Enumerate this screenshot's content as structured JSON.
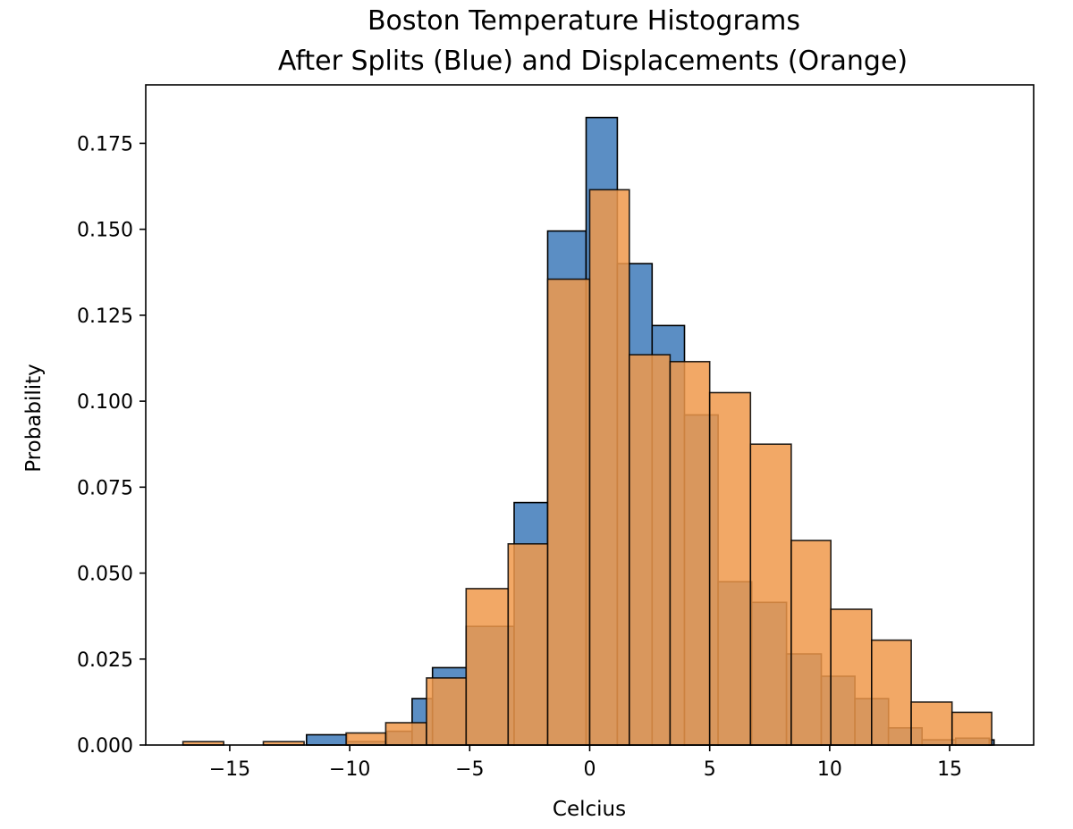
{
  "chart_data": {
    "type": "bar",
    "title": [
      "Boston Temperature Histograms",
      "After Splits (Blue) and Displacements (Orange)"
    ],
    "xlabel": "Celcius",
    "ylabel": "Probability",
    "xlim": [
      -18.5,
      18.5
    ],
    "ylim": [
      0,
      0.192
    ],
    "xticks": [
      -15,
      -10,
      -5,
      0,
      5,
      10,
      15
    ],
    "xtick_labels": [
      "−15",
      "−10",
      "−5",
      "0",
      "5",
      "10",
      "15"
    ],
    "yticks": [
      0.0,
      0.025,
      0.05,
      0.075,
      0.1,
      0.125,
      0.15,
      0.175
    ],
    "ytick_labels": [
      "0.000",
      "0.025",
      "0.050",
      "0.075",
      "0.100",
      "0.125",
      "0.150",
      "0.175"
    ],
    "grid": false,
    "series": [
      {
        "color": "#5b8ec4",
        "bins": [
          [
            -11.8,
            -10.1,
            0.003
          ],
          [
            -10.1,
            -8.45,
            0.001
          ],
          [
            -8.45,
            -7.4,
            0.004
          ],
          [
            -7.4,
            -6.55,
            0.0135
          ],
          [
            -6.55,
            -5.15,
            0.0225
          ],
          [
            -5.15,
            -3.15,
            0.0345
          ],
          [
            -3.15,
            -1.75,
            0.0705
          ],
          [
            -1.75,
            -0.15,
            0.1495
          ],
          [
            -0.15,
            1.15,
            0.1825
          ],
          [
            1.15,
            2.6,
            0.14
          ],
          [
            2.6,
            3.95,
            0.122
          ],
          [
            3.95,
            5.35,
            0.096
          ],
          [
            5.35,
            6.75,
            0.0475
          ],
          [
            6.75,
            8.2,
            0.0415
          ],
          [
            8.2,
            9.65,
            0.0265
          ],
          [
            9.65,
            11.05,
            0.02
          ],
          [
            11.05,
            12.45,
            0.0135
          ],
          [
            12.45,
            13.85,
            0.005
          ],
          [
            13.85,
            15.25,
            0.0015
          ],
          [
            15.25,
            16.65,
            0.002
          ],
          [
            16.65,
            16.85,
            0.0015
          ]
        ]
      },
      {
        "color": "#f0994b",
        "bins": [
          [
            -16.95,
            -15.25,
            0.001
          ],
          [
            -13.6,
            -11.9,
            0.001
          ],
          [
            -10.15,
            -8.5,
            0.0035
          ],
          [
            -8.5,
            -6.8,
            0.0065
          ],
          [
            -6.8,
            -5.15,
            0.0195
          ],
          [
            -5.15,
            -3.4,
            0.0455
          ],
          [
            -3.4,
            -1.75,
            0.0585
          ],
          [
            -1.75,
            0.0,
            0.1355
          ],
          [
            0.0,
            1.65,
            0.1615
          ],
          [
            1.65,
            3.35,
            0.1135
          ],
          [
            3.35,
            5.0,
            0.1115
          ],
          [
            5.0,
            6.7,
            0.1025
          ],
          [
            6.7,
            8.4,
            0.0875
          ],
          [
            8.4,
            10.05,
            0.0595
          ],
          [
            10.05,
            11.75,
            0.0395
          ],
          [
            11.75,
            13.4,
            0.0305
          ],
          [
            13.4,
            15.1,
            0.0125
          ],
          [
            15.1,
            16.75,
            0.0095
          ]
        ]
      }
    ]
  }
}
